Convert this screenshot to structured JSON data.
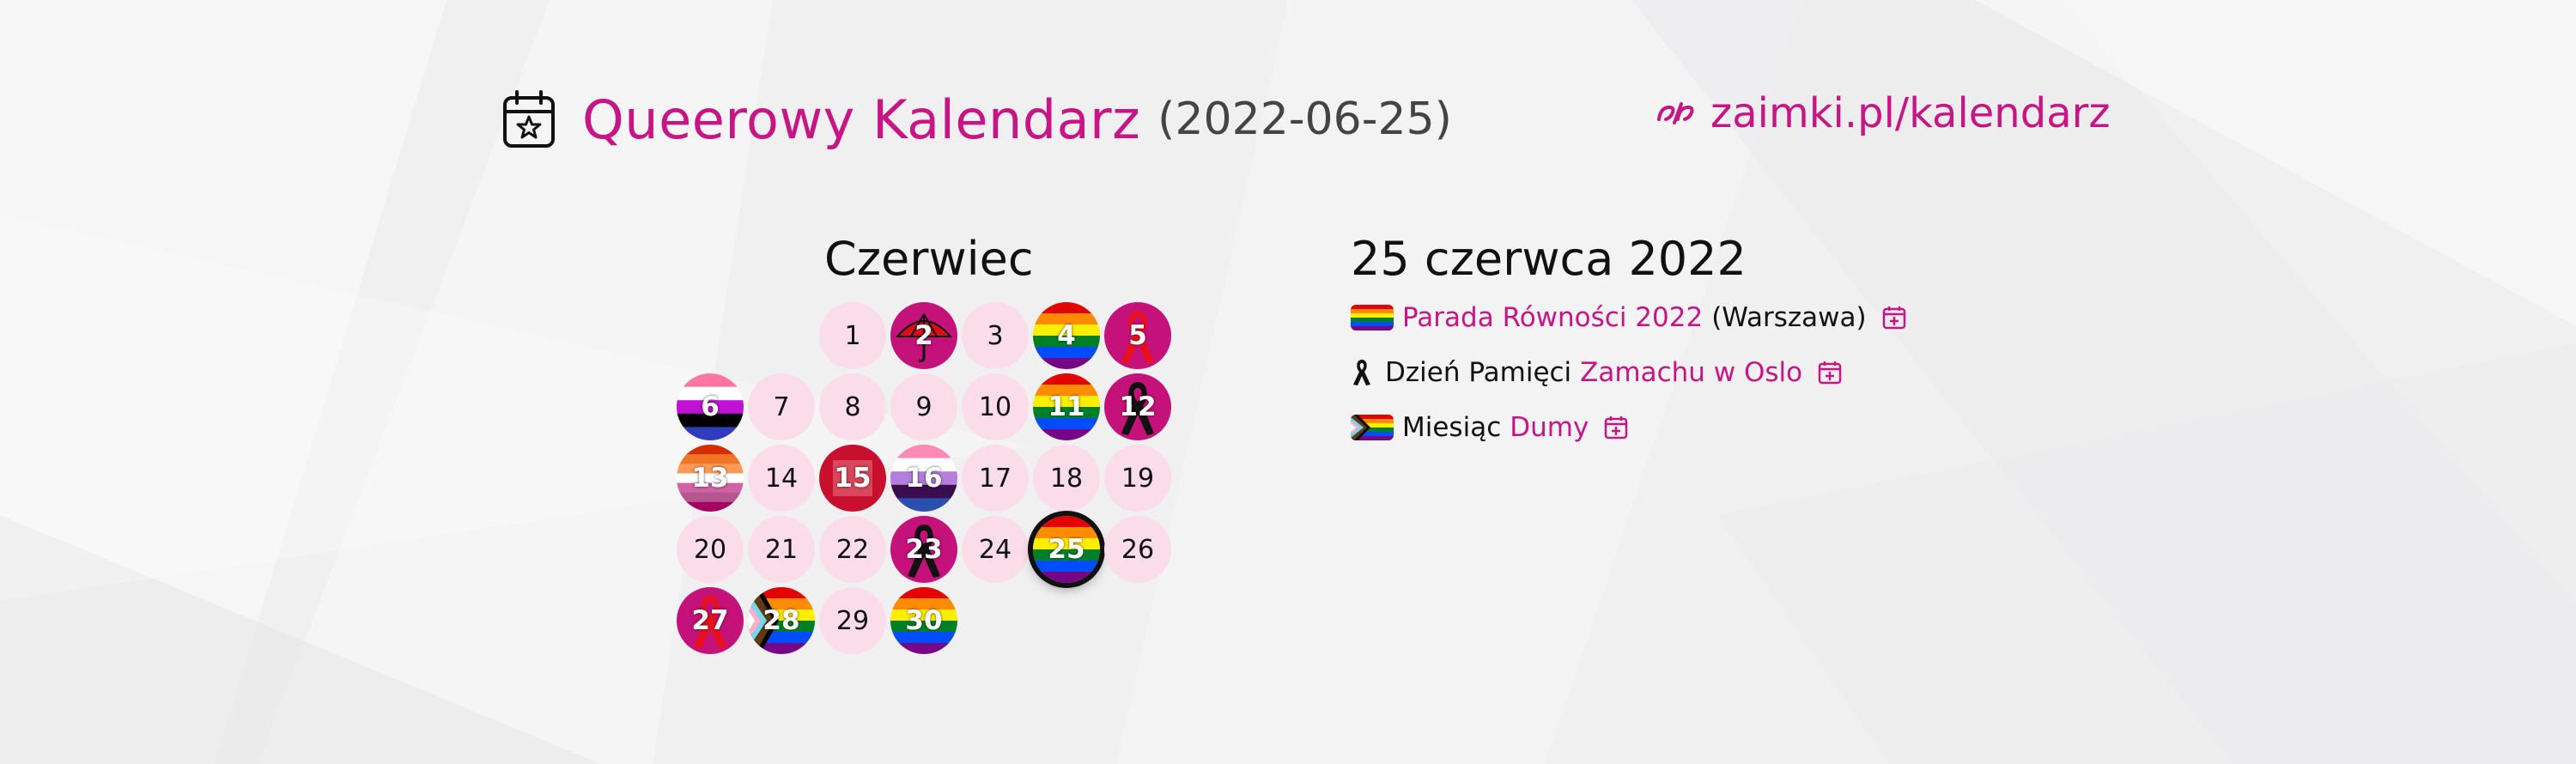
{
  "header": {
    "title": "Queerowy Kalendarz",
    "date": "(2022-06-25)",
    "site_url": "zaimki.pl/kalendarz",
    "calendar_icon": "calendar-star-icon",
    "site_logo": "zaimki-logo-icon"
  },
  "colors": {
    "accent": "#c71585",
    "day_bg": "#fbdde9",
    "page_bg": "#f1f1f2"
  },
  "calendar": {
    "month": "Czerwiec",
    "days": [
      {
        "d": "1"
      },
      {
        "d": "2",
        "flag": "red-umbrella"
      },
      {
        "d": "3"
      },
      {
        "d": "4",
        "flag": "rainbow"
      },
      {
        "d": "5",
        "flag": "red-ribbon"
      },
      {
        "d": "6",
        "flag": "genderfluid"
      },
      {
        "d": "7"
      },
      {
        "d": "8"
      },
      {
        "d": "9"
      },
      {
        "d": "10"
      },
      {
        "d": "11",
        "flag": "rainbow"
      },
      {
        "d": "12",
        "flag": "black-ribbon"
      },
      {
        "d": "13",
        "flag": "lesbian"
      },
      {
        "d": "14"
      },
      {
        "d": "15",
        "flag": "red-square"
      },
      {
        "d": "16",
        "flag": "genderqueer"
      },
      {
        "d": "17"
      },
      {
        "d": "18"
      },
      {
        "d": "19"
      },
      {
        "d": "20"
      },
      {
        "d": "21"
      },
      {
        "d": "22"
      },
      {
        "d": "23",
        "flag": "black-ribbon"
      },
      {
        "d": "24"
      },
      {
        "d": "25",
        "flag": "rainbow",
        "today": true
      },
      {
        "d": "26"
      },
      {
        "d": "27",
        "flag": "red-ribbon"
      },
      {
        "d": "28",
        "flag": "progress"
      },
      {
        "d": "29"
      },
      {
        "d": "30",
        "flag": "rainbow"
      }
    ]
  },
  "details": {
    "title": "25 czerwca 2022",
    "events": [
      {
        "icon": "rainbow-flag-icon",
        "link": "Parada Równości 2022",
        "after": "(Warszawa)"
      },
      {
        "icon": "black-ribbon-icon",
        "before": "Dzień Pamięci",
        "link": "Zamachu w Oslo"
      },
      {
        "icon": "progress-flag-icon",
        "before": "Miesiąc",
        "link": "Dumy"
      }
    ]
  }
}
